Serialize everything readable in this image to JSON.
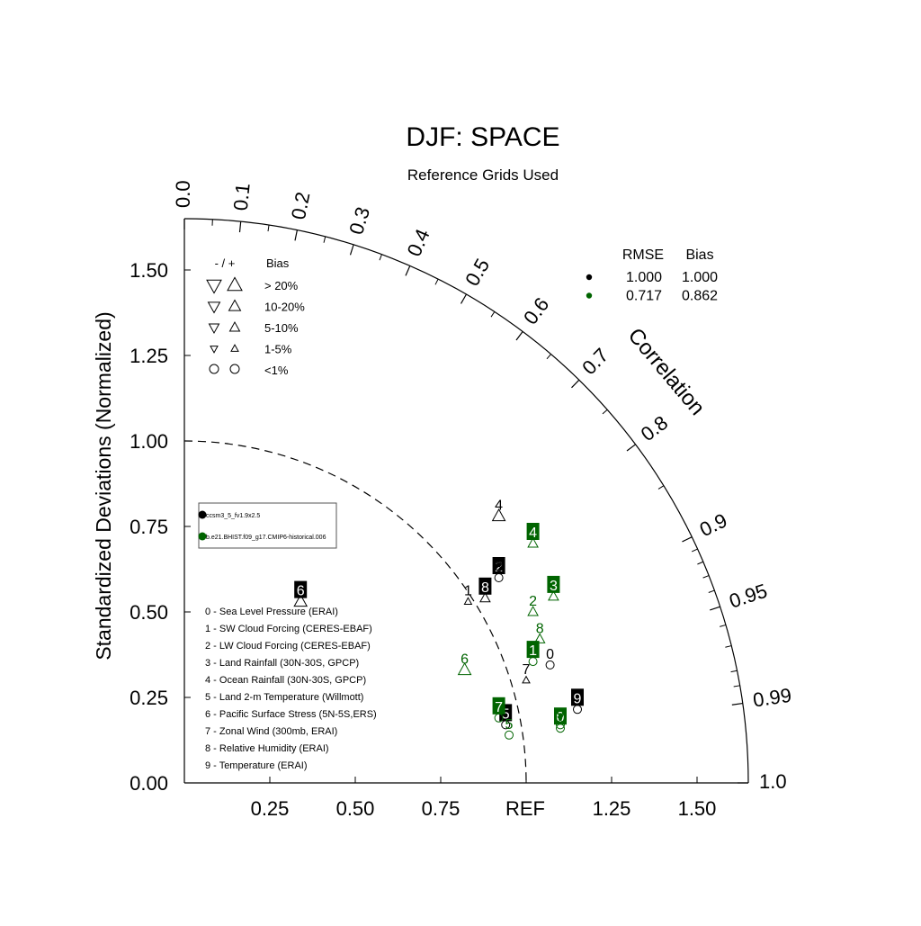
{
  "chart_data": {
    "type": "scatter",
    "subtype": "taylor-diagram",
    "title": "DJF: SPACE",
    "subtitle": "Reference Grids Used",
    "ylabel": "Standardized Deviations (Normalized)",
    "correlation_label": "Correlation",
    "ref_label": "REF",
    "std_range": [
      0,
      1.65
    ],
    "reference_std": 1.0,
    "x_ticks": [
      "0.25",
      "0.50",
      "0.75",
      "1.25",
      "1.50"
    ],
    "y_ticks": [
      "0.00",
      "0.25",
      "0.50",
      "0.75",
      "1.00",
      "1.25",
      "1.50"
    ],
    "correlation_ticks": [
      "0.0",
      "0.1",
      "0.2",
      "0.3",
      "0.4",
      "0.5",
      "0.6",
      "0.7",
      "0.8",
      "0.9",
      "0.95",
      "0.99",
      "1.0"
    ],
    "bias_legend": {
      "header_sign": "- / +",
      "header_bias": "Bias",
      "rows": [
        "> 20%",
        "10-20%",
        "5-10%",
        "1-5%",
        "<1%"
      ]
    },
    "summary_table": {
      "headers": [
        "RMSE",
        "Bias"
      ],
      "rows": [
        {
          "color": "#000000",
          "rmse": "1.000",
          "bias": "1.000"
        },
        {
          "color": "#006400",
          "rmse": "0.717",
          "bias": "0.862"
        }
      ]
    },
    "case_legend": [
      {
        "color": "#000000",
        "name": "ccsm3_5_fv1.9x2.5"
      },
      {
        "color": "#006400",
        "name": "b.e21.BHIST.f09_g17.CMIP6-historical.006"
      }
    ],
    "variables": [
      "0 - Sea Level Pressure (ERAI)",
      "1 - SW Cloud Forcing (CERES-EBAF)",
      "2 - LW Cloud Forcing (CERES-EBAF)",
      "3 - Land Rainfall (30N-30S, GPCP)",
      "4 - Ocean Rainfall (30N-30S, GPCP)",
      "5 - Land 2-m Temperature (Willmott)",
      "6 - Pacific Surface Stress (5N-5S,ERS)",
      "7 - Zonal Wind (300mb, ERAI)",
      "8 - Relative Humidity (ERAI)",
      "9 - Temperature (ERAI)"
    ],
    "series": [
      {
        "color": "#000000",
        "points": [
          {
            "label": "0",
            "x": 1.07,
            "y": 0.345,
            "marker": "circle",
            "boxed": false
          },
          {
            "label": "1",
            "x": 0.83,
            "y": 0.53,
            "marker": "tri-up-1",
            "boxed": false
          },
          {
            "label": "2",
            "x": 0.92,
            "y": 0.6,
            "marker": "circle",
            "boxed": true
          },
          {
            "label": "3",
            "x": 0.92,
            "y": 0.6,
            "marker": "none",
            "boxed": false
          },
          {
            "label": "4",
            "x": 0.92,
            "y": 0.78,
            "marker": "tri-up-10",
            "boxed": false
          },
          {
            "label": "5",
            "x": 0.94,
            "y": 0.17,
            "marker": "circle",
            "boxed": true
          },
          {
            "label": "6",
            "x": 0.34,
            "y": 0.53,
            "marker": "tri-up-10",
            "boxed": true
          },
          {
            "label": "7",
            "x": 1.0,
            "y": 0.3,
            "marker": "tri-up-1",
            "boxed": false
          },
          {
            "label": "8",
            "x": 0.88,
            "y": 0.54,
            "marker": "tri-up-5",
            "boxed": true
          },
          {
            "label": "9",
            "x": 1.15,
            "y": 0.215,
            "marker": "circle",
            "boxed": true
          }
        ]
      },
      {
        "color": "#006400",
        "points": [
          {
            "label": "0",
            "x": 1.1,
            "y": 0.16,
            "marker": "circle",
            "boxed": true
          },
          {
            "label": "1",
            "x": 1.02,
            "y": 0.355,
            "marker": "circle",
            "boxed": true
          },
          {
            "label": "2",
            "x": 1.02,
            "y": 0.5,
            "marker": "tri-up-5",
            "boxed": false
          },
          {
            "label": "3",
            "x": 1.08,
            "y": 0.545,
            "marker": "tri-up-5",
            "boxed": true
          },
          {
            "label": "4",
            "x": 1.02,
            "y": 0.7,
            "marker": "tri-up-5",
            "boxed": true
          },
          {
            "label": "5",
            "x": 0.95,
            "y": 0.14,
            "marker": "circle",
            "boxed": false
          },
          {
            "label": "6",
            "x": 0.82,
            "y": 0.33,
            "marker": "tri-up-10",
            "boxed": false
          },
          {
            "label": "7",
            "x": 0.92,
            "y": 0.19,
            "marker": "circle",
            "boxed": true
          },
          {
            "label": "8",
            "x": 1.04,
            "y": 0.42,
            "marker": "tri-up-5",
            "boxed": false
          },
          {
            "label": "9",
            "x": 1.1,
            "y": 0.17,
            "marker": "circle",
            "boxed": false
          }
        ]
      }
    ]
  }
}
